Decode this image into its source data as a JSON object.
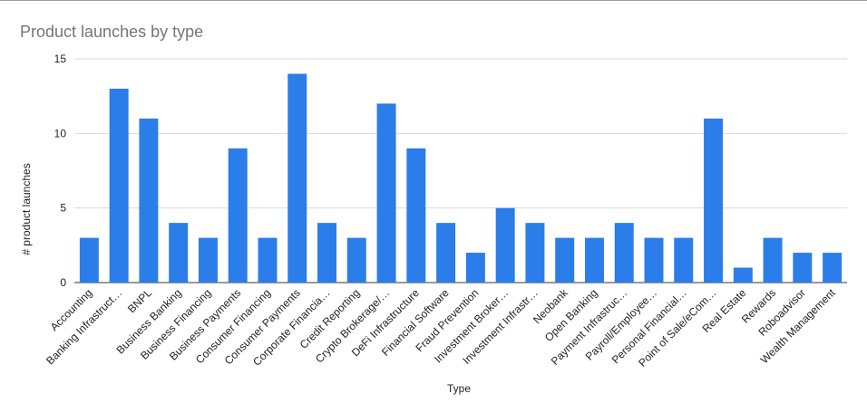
{
  "chart_data": {
    "type": "bar",
    "title": "Product launches by type",
    "xlabel": "Type",
    "ylabel": "# product launches",
    "ylim": [
      0,
      15
    ],
    "yticks": [
      0,
      5,
      10,
      15
    ],
    "grid": true,
    "legend": "none",
    "bar_color": "#2b7de9",
    "categories": [
      "Accounting",
      "Banking Infrastruct…",
      "BNPL",
      "Business Banking",
      "Business Financing",
      "Business Payments",
      "Consumer Financing",
      "Consumer Payments",
      "Corporate Financia…",
      "Credit Reporting",
      "Crypto Brokerage/…",
      "DeFi Infrastructure",
      "Financial Software",
      "Fraud Prevention",
      "Investment Broker…",
      "Investment Infrastr…",
      "Neobank",
      "Open Banking",
      "Payment Infrastruc…",
      "Payroll/Employee…",
      "Personal Financial…",
      "Point of Sale/eCom…",
      "Real Estate",
      "Rewards",
      "Roboadvisor",
      "Wealth Management"
    ],
    "values": [
      3,
      13,
      11,
      4,
      3,
      9,
      3,
      14,
      4,
      3,
      12,
      9,
      4,
      2,
      5,
      4,
      3,
      3,
      4,
      3,
      3,
      11,
      1,
      3,
      2,
      2
    ]
  }
}
